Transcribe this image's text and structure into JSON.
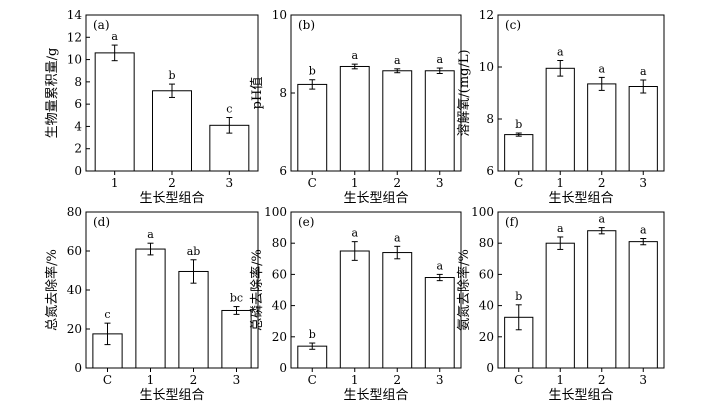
{
  "chart_data": [
    {
      "type": "bar",
      "panel_label": "(a)",
      "categories": [
        "1",
        "2",
        "3"
      ],
      "values": [
        10.6,
        7.2,
        4.1
      ],
      "errors": [
        0.7,
        0.6,
        0.7
      ],
      "significance": [
        "a",
        "b",
        "c"
      ],
      "xlabel": "生长型组合",
      "ylabel": "生物量累积量/g",
      "ylim": [
        0,
        14
      ],
      "yticks": [
        0,
        2,
        4,
        6,
        8,
        10,
        12,
        14
      ]
    },
    {
      "type": "bar",
      "panel_label": "(b)",
      "categories": [
        "C",
        "1",
        "2",
        "3"
      ],
      "values": [
        8.22,
        8.68,
        8.57,
        8.57
      ],
      "errors": [
        0.12,
        0.06,
        0.05,
        0.07
      ],
      "significance": [
        "b",
        "a",
        "a",
        "a"
      ],
      "xlabel": "生长型组合",
      "ylabel": "pH值",
      "ylim": [
        6,
        10
      ],
      "yticks": [
        6,
        8,
        10
      ]
    },
    {
      "type": "bar",
      "panel_label": "(c)",
      "categories": [
        "C",
        "1",
        "2",
        "3"
      ],
      "values": [
        7.4,
        9.95,
        9.35,
        9.25
      ],
      "errors": [
        0.06,
        0.3,
        0.25,
        0.25
      ],
      "significance": [
        "b",
        "a",
        "a",
        "a"
      ],
      "xlabel": "生长型组合",
      "ylabel": "溶解氧/(mg/L)",
      "ylim": [
        6,
        12
      ],
      "yticks": [
        6,
        8,
        10,
        12
      ]
    },
    {
      "type": "bar",
      "panel_label": "(d)",
      "categories": [
        "C",
        "1",
        "2",
        "3"
      ],
      "values": [
        17.5,
        61,
        49.5,
        29.5
      ],
      "errors": [
        5.5,
        3,
        6,
        2
      ],
      "significance": [
        "c",
        "a",
        "ab",
        "bc"
      ],
      "xlabel": "生长型组合",
      "ylabel": "总氮去除率/%",
      "ylim": [
        0,
        80
      ],
      "yticks": [
        0,
        20,
        40,
        60,
        80
      ]
    },
    {
      "type": "bar",
      "panel_label": "(e)",
      "categories": [
        "C",
        "1",
        "2",
        "3"
      ],
      "values": [
        14,
        75,
        74,
        58
      ],
      "errors": [
        2,
        6,
        4,
        2
      ],
      "significance": [
        "b",
        "a",
        "a",
        "a"
      ],
      "xlabel": "生长型组合",
      "ylabel": "总磷去除率/%",
      "ylim": [
        0,
        100
      ],
      "yticks": [
        0,
        20,
        40,
        60,
        80,
        100
      ]
    },
    {
      "type": "bar",
      "panel_label": "(f)",
      "categories": [
        "C",
        "1",
        "2",
        "3"
      ],
      "values": [
        32.5,
        80,
        88,
        81
      ],
      "errors": [
        8,
        4,
        2,
        2
      ],
      "significance": [
        "b",
        "a",
        "a",
        "a"
      ],
      "xlabel": "生长型组合",
      "ylabel": "氨氮去除率/%",
      "ylim": [
        0,
        100
      ],
      "yticks": [
        0,
        20,
        40,
        60,
        80,
        100
      ]
    }
  ]
}
